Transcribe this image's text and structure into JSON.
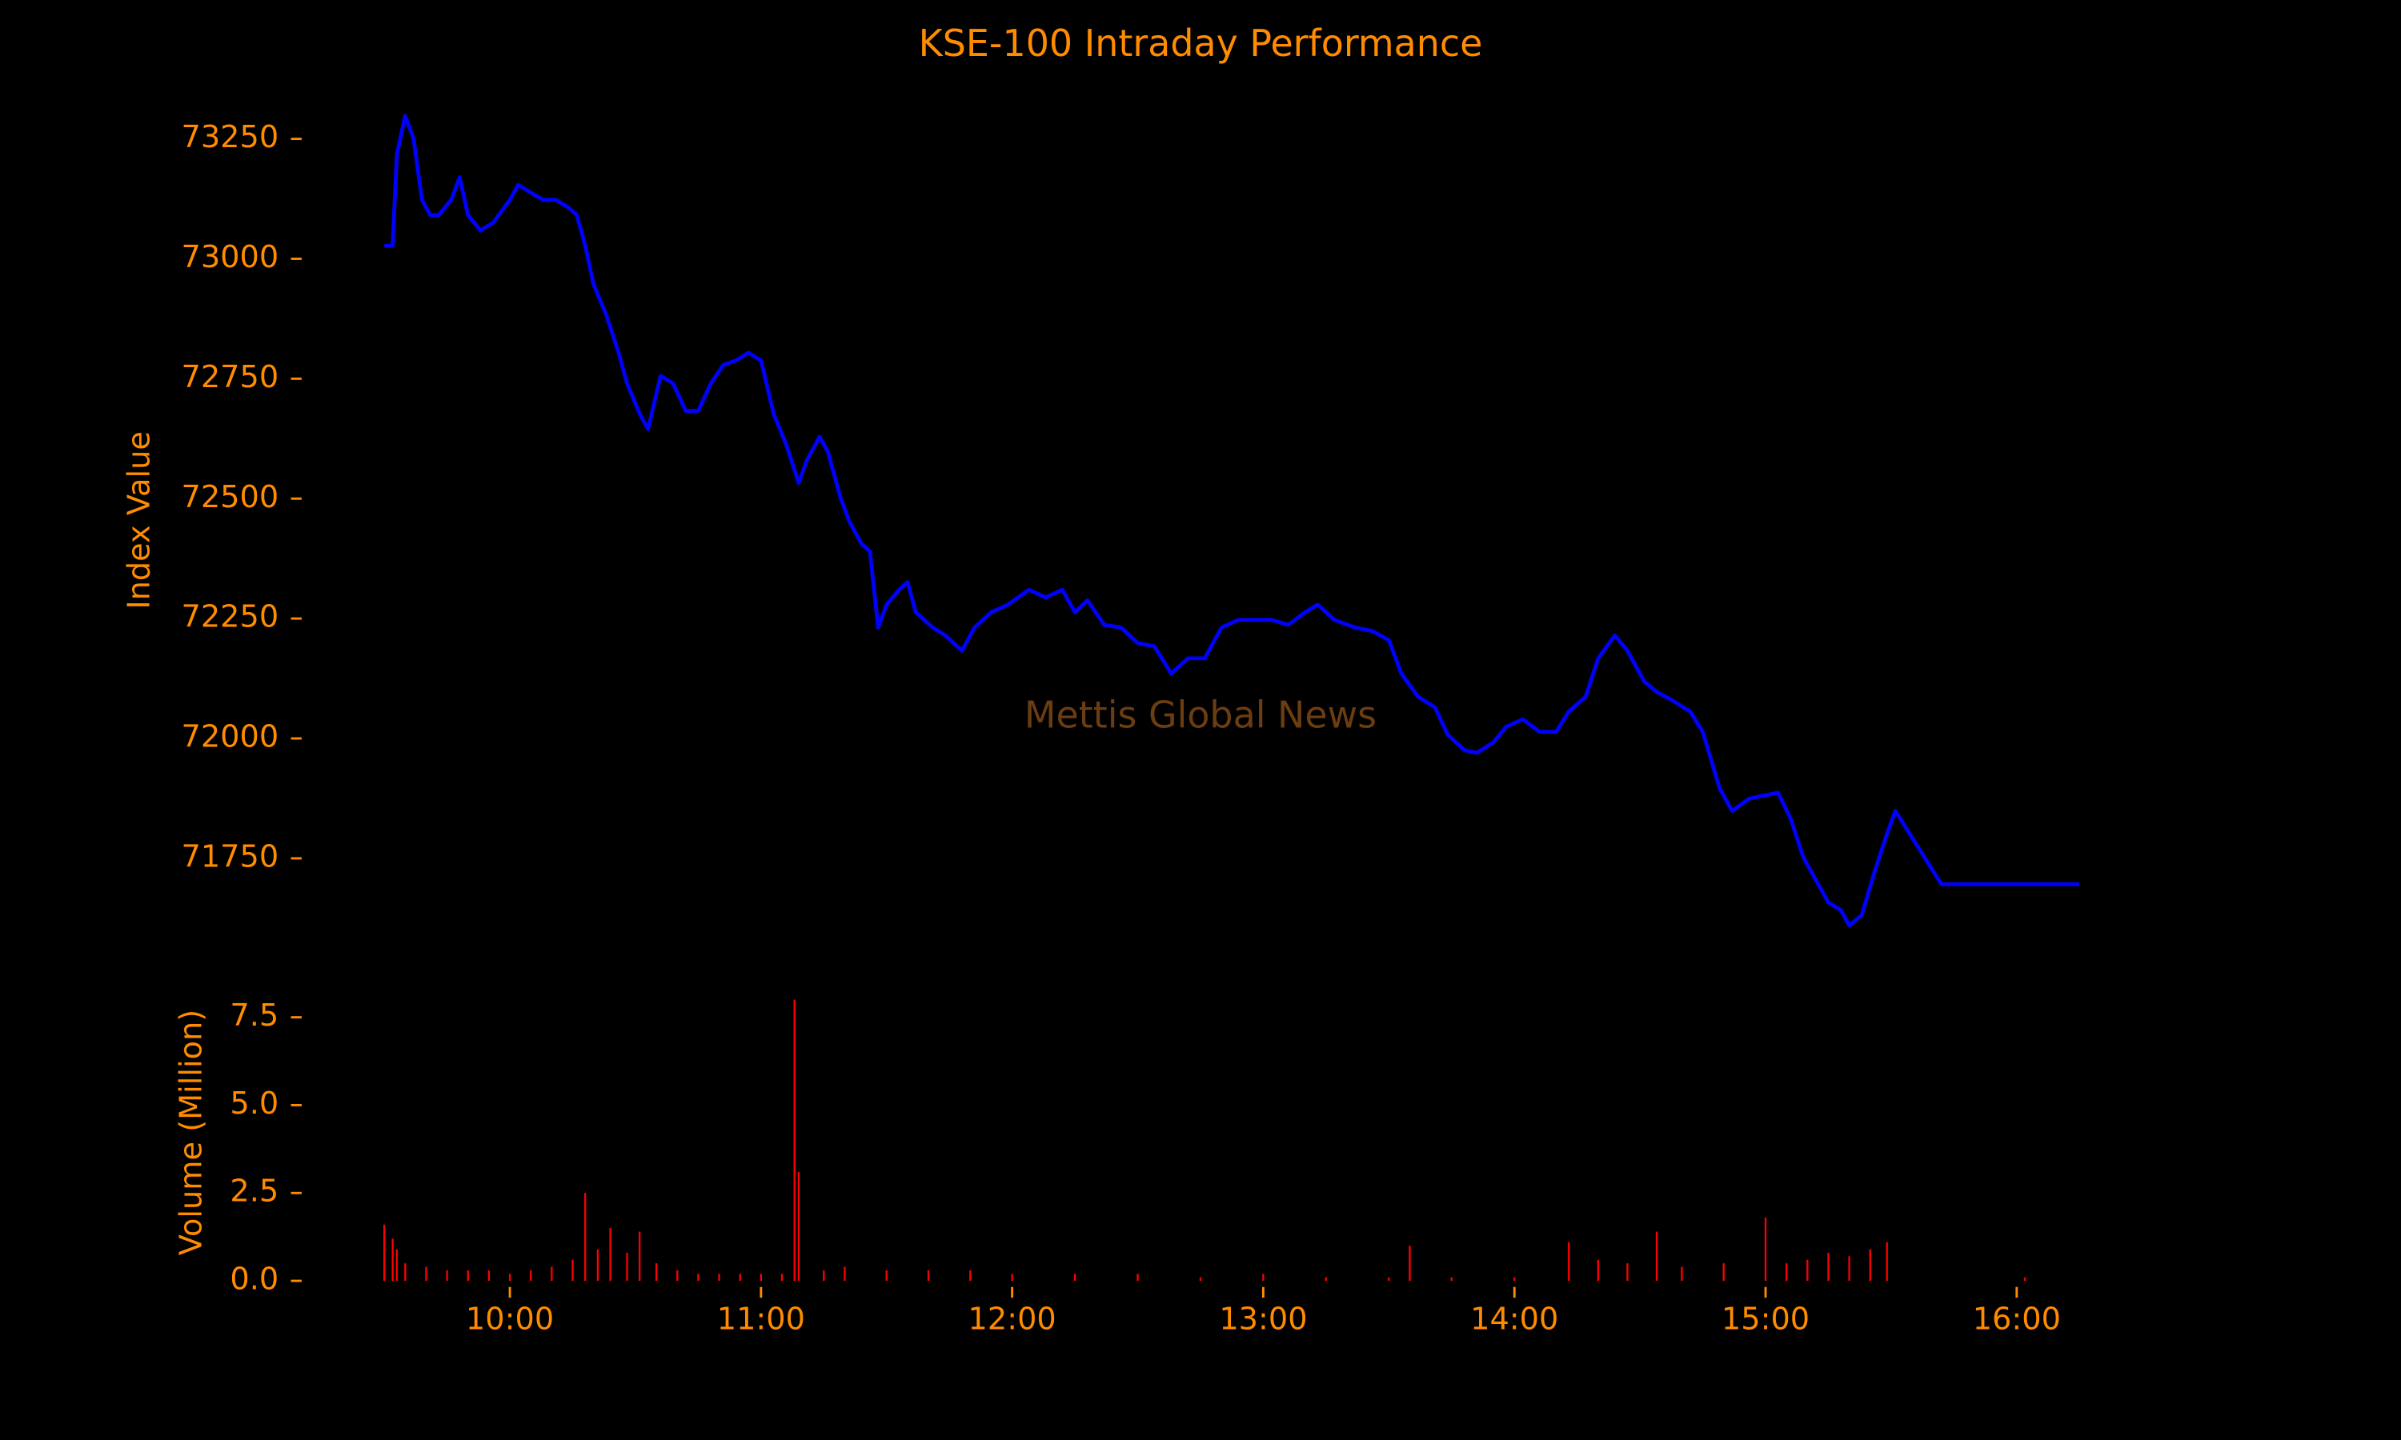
{
  "chart_data": [
    {
      "type": "line",
      "title": "KSE-100 Intraday Performance",
      "ylabel": "Index Value",
      "watermark": "Mettis Global News",
      "color": "#0000ff",
      "x": [
        "09:30",
        "09:32",
        "09:33",
        "09:35",
        "09:37",
        "09:39",
        "09:41",
        "09:43",
        "09:46",
        "09:48",
        "09:50",
        "09:53",
        "09:56",
        "10:00",
        "10:02",
        "10:05",
        "10:08",
        "10:11",
        "10:14",
        "10:16",
        "10:18",
        "10:20",
        "10:23",
        "10:26",
        "10:28",
        "10:31",
        "10:33",
        "10:36",
        "10:39",
        "10:42",
        "10:45",
        "10:48",
        "10:51",
        "10:54",
        "10:57",
        "11:00",
        "11:03",
        "11:06",
        "11:09",
        "11:11",
        "11:14",
        "11:16",
        "11:19",
        "11:21",
        "11:24",
        "11:26",
        "11:28",
        "11:30",
        "11:33",
        "11:35",
        "11:37",
        "11:41",
        "11:44",
        "11:48",
        "11:51",
        "11:55",
        "11:59",
        "12:04",
        "12:08",
        "12:12",
        "12:15",
        "12:18",
        "12:22",
        "12:26",
        "12:30",
        "12:34",
        "12:38",
        "12:42",
        "12:46",
        "12:50",
        "12:54",
        "12:58",
        "13:02",
        "13:06",
        "13:10",
        "13:13",
        "13:17",
        "13:22",
        "13:26",
        "13:30",
        "13:33",
        "13:37",
        "13:41",
        "13:44",
        "13:48",
        "13:51",
        "13:55",
        "13:58",
        "14:02",
        "14:06",
        "14:10",
        "14:13",
        "14:17",
        "14:20",
        "14:24",
        "14:27",
        "14:31",
        "14:34",
        "14:38",
        "14:42",
        "14:45",
        "14:49",
        "14:52",
        "14:56",
        "14:59",
        "15:03",
        "15:06",
        "15:09",
        "15:12",
        "15:15",
        "15:18",
        "15:20",
        "15:23",
        "15:26",
        "15:29",
        "15:31",
        "15:42",
        "16:15"
      ],
      "values": [
        73027,
        73027,
        73218,
        73298,
        73250,
        73123,
        73091,
        73091,
        73123,
        73170,
        73091,
        73059,
        73075,
        73123,
        73154,
        73138,
        73123,
        73123,
        73107,
        73091,
        73027,
        72947,
        72884,
        72804,
        72740,
        72677,
        72645,
        72756,
        72740,
        72683,
        72683,
        72740,
        72779,
        72788,
        72804,
        72788,
        72677,
        72613,
        72533,
        72581,
        72629,
        72597,
        72502,
        72454,
        72406,
        72390,
        72231,
        72279,
        72310,
        72326,
        72263,
        72231,
        72215,
        72183,
        72231,
        72263,
        72279,
        72310,
        72294,
        72310,
        72263,
        72288,
        72237,
        72231,
        72199,
        72192,
        72135,
        72167,
        72167,
        72231,
        72247,
        72247,
        72247,
        72237,
        72263,
        72279,
        72247,
        72231,
        72224,
        72205,
        72135,
        72087,
        72065,
        72008,
        71976,
        71970,
        71992,
        72024,
        72040,
        72014,
        72014,
        72056,
        72087,
        72167,
        72215,
        72183,
        72119,
        72097,
        72078,
        72056,
        72014,
        71896,
        71849,
        71874,
        71880,
        71887,
        71833,
        71753,
        71705,
        71658,
        71642,
        71610,
        71632,
        71721,
        71801,
        71849,
        71696,
        71696
      ],
      "xlim": [
        "09:10",
        "16:35"
      ],
      "ylim": [
        71520,
        73380
      ],
      "yticks": [
        71750,
        72000,
        72250,
        72500,
        72750,
        73000,
        73250
      ]
    },
    {
      "type": "bar",
      "ylabel": "Volume (Million)",
      "color": "#ff0000",
      "x": [
        "09:30",
        "09:32",
        "09:33",
        "09:35",
        "09:40",
        "09:45",
        "09:50",
        "09:55",
        "10:00",
        "10:05",
        "10:10",
        "10:15",
        "10:18",
        "10:21",
        "10:24",
        "10:28",
        "10:31",
        "10:35",
        "10:40",
        "10:45",
        "10:50",
        "10:55",
        "11:00",
        "11:05",
        "11:08",
        "11:09",
        "11:15",
        "11:20",
        "11:30",
        "11:40",
        "11:50",
        "12:00",
        "12:15",
        "12:30",
        "12:45",
        "13:00",
        "13:15",
        "13:30",
        "13:35",
        "13:45",
        "14:00",
        "14:13",
        "14:20",
        "14:27",
        "14:34",
        "14:40",
        "14:50",
        "15:00",
        "15:05",
        "15:10",
        "15:15",
        "15:20",
        "15:25",
        "15:29",
        "16:02"
      ],
      "values": [
        1.6,
        1.2,
        0.9,
        0.5,
        0.4,
        0.3,
        0.3,
        0.3,
        0.2,
        0.3,
        0.4,
        0.6,
        2.5,
        0.9,
        1.5,
        0.8,
        1.4,
        0.5,
        0.3,
        0.2,
        0.2,
        0.2,
        0.2,
        0.2,
        8.0,
        3.1,
        0.3,
        0.4,
        0.3,
        0.3,
        0.3,
        0.2,
        0.2,
        0.2,
        0.1,
        0.2,
        0.1,
        0.1,
        1.0,
        0.1,
        0.1,
        1.1,
        0.6,
        0.5,
        1.4,
        0.4,
        0.5,
        1.8,
        0.5,
        0.6,
        0.8,
        0.7,
        0.9,
        1.1,
        0.1
      ],
      "xlim": [
        "09:10",
        "16:35"
      ],
      "ylim": [
        0,
        8.1
      ],
      "yticks": [
        {
          "value": 0,
          "label": "0.0"
        },
        2.5,
        {
          "value": 5,
          "label": "5.0"
        },
        7.5
      ],
      "xticks": [
        "10:00",
        "11:00",
        "12:00",
        "13:00",
        "14:00",
        "15:00",
        "16:00"
      ]
    }
  ]
}
